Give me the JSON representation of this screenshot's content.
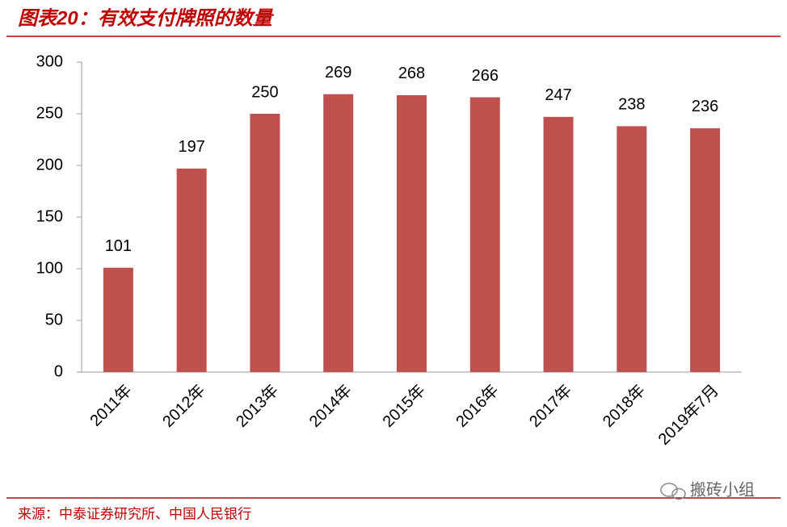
{
  "chart_data": {
    "type": "bar",
    "title": "图表20：有效支付牌照的数量",
    "categories": [
      "2011年",
      "2012年",
      "2013年",
      "2014年",
      "2015年",
      "2016年",
      "2017年",
      "2018年",
      "2019年7月"
    ],
    "values": [
      101,
      197,
      250,
      269,
      268,
      266,
      247,
      238,
      236
    ],
    "color": "#c0504d",
    "ylim": [
      0,
      300
    ],
    "yticks": [
      0,
      50,
      100,
      150,
      200,
      250,
      300
    ],
    "grid": false,
    "source": "来源：中泰证券研究所、中国人民银行",
    "watermark": "搬砖小组"
  }
}
